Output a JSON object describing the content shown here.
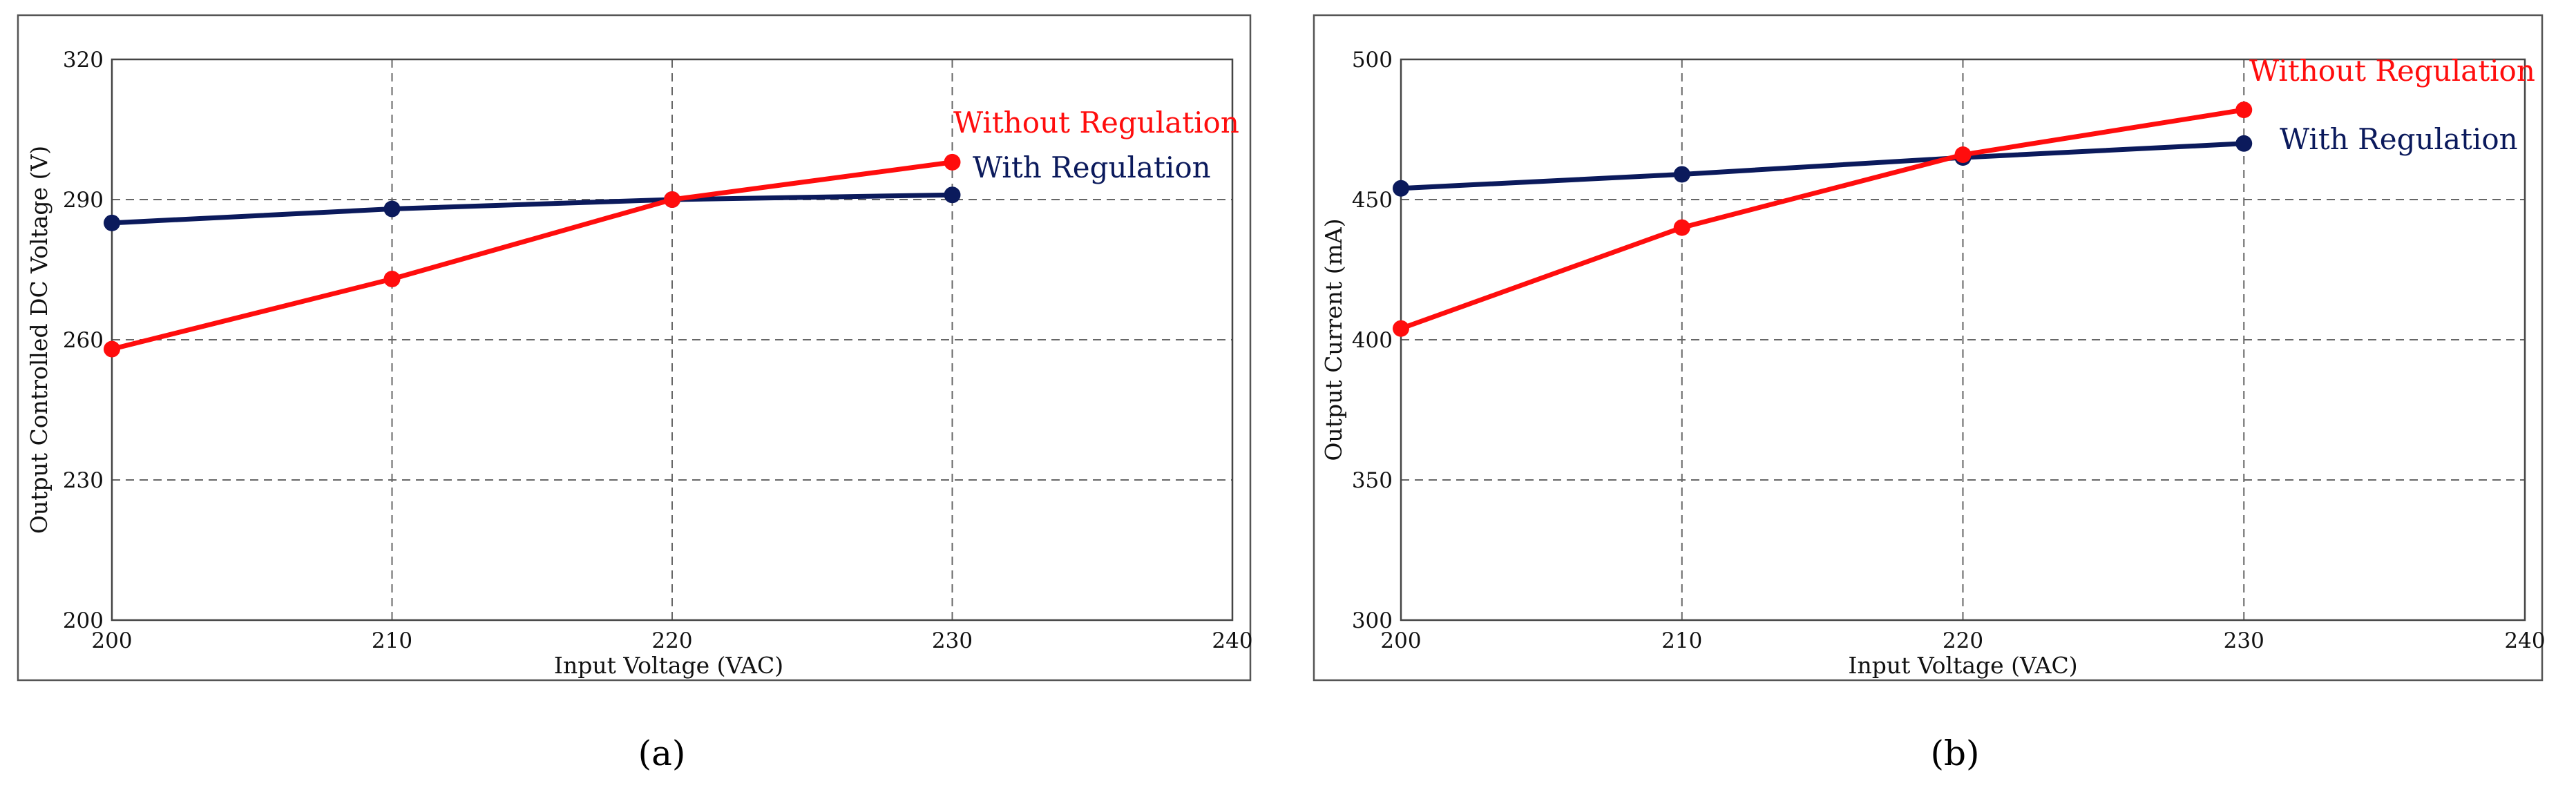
{
  "chart_data": [
    {
      "type": "line",
      "caption": "(a)",
      "xlabel": "Input Voltage (VAC)",
      "ylabel": "Output Controlled DC Voltage (V)",
      "xlim": [
        200,
        240
      ],
      "ylim": [
        200,
        320
      ],
      "xticks": [
        200,
        210,
        220,
        230,
        240
      ],
      "yticks": [
        200,
        230,
        260,
        290,
        320
      ],
      "grid": true,
      "series": [
        {
          "name": "With Regulation",
          "color": "#0b1a5c",
          "x": [
            200,
            210,
            220,
            230
          ],
          "y": [
            285,
            288,
            290,
            291
          ]
        },
        {
          "name": "Without Regulation",
          "color": "#ff0d0d",
          "x": [
            200,
            210,
            220,
            230
          ],
          "y": [
            258,
            273,
            290,
            298
          ]
        }
      ]
    },
    {
      "type": "line",
      "caption": "(b)",
      "xlabel": "Input Voltage (VAC)",
      "ylabel": "Output Current (mA)",
      "xlim": [
        200,
        240
      ],
      "ylim": [
        300,
        500
      ],
      "xticks": [
        200,
        210,
        220,
        230,
        240
      ],
      "yticks": [
        300,
        350,
        400,
        450,
        500
      ],
      "grid": true,
      "series": [
        {
          "name": "With Regulation",
          "color": "#0b1a5c",
          "x": [
            200,
            210,
            220,
            230
          ],
          "y": [
            454,
            459,
            465,
            470
          ]
        },
        {
          "name": "Without Regulation",
          "color": "#ff0d0d",
          "x": [
            200,
            210,
            220,
            230
          ],
          "y": [
            404,
            440,
            466,
            482
          ]
        }
      ]
    }
  ]
}
